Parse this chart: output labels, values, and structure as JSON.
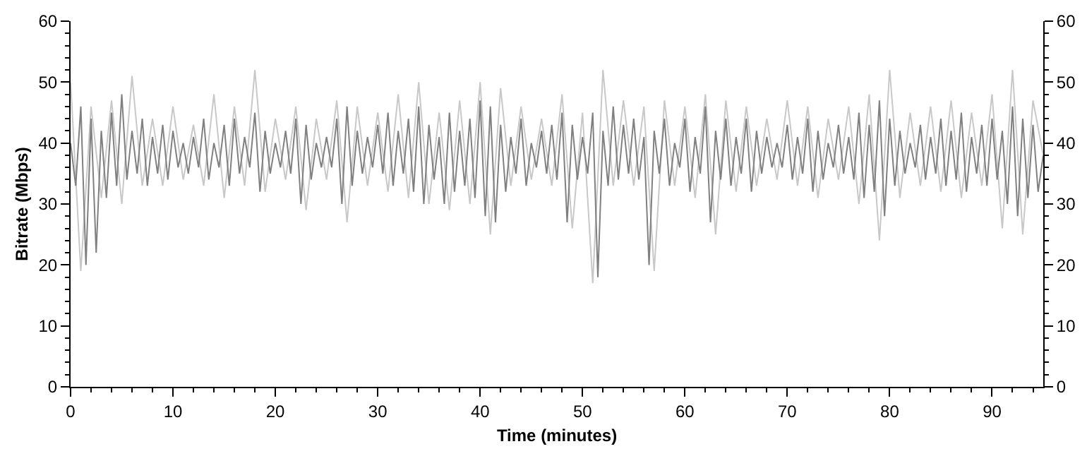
{
  "chart_data": {
    "type": "line",
    "xlabel": "Time (minutes)",
    "ylabel": "Bitrate (Mbps)",
    "xlim": [
      0,
      95
    ],
    "xticks": [
      0,
      10,
      20,
      30,
      40,
      50,
      60,
      70,
      80,
      90
    ],
    "ylim": [
      0,
      60
    ],
    "yticks": [
      0,
      10,
      20,
      30,
      40,
      50,
      60
    ],
    "y2lim": [
      0,
      60
    ],
    "y2ticks": [
      0,
      10,
      20,
      30,
      40,
      50,
      60
    ],
    "marker": "none",
    "line_style": "solid",
    "series": [
      {
        "color": "#c8c8c8",
        "x": [
          0,
          1,
          2,
          3,
          4,
          5,
          6,
          7,
          8,
          9,
          10,
          11,
          12,
          13,
          14,
          15,
          16,
          17,
          18,
          19,
          20,
          21,
          22,
          23,
          24,
          25,
          26,
          27,
          28,
          29,
          30,
          31,
          32,
          33,
          34,
          35,
          36,
          37,
          38,
          39,
          40,
          41,
          42,
          43,
          44,
          45,
          46,
          47,
          48,
          49,
          50,
          51,
          52,
          53,
          54,
          55,
          56,
          57,
          58,
          59,
          60,
          61,
          62,
          63,
          64,
          65,
          66,
          67,
          68,
          69,
          70,
          71,
          72,
          73,
          74,
          75,
          76,
          77,
          78,
          79,
          80,
          81,
          82,
          83,
          84,
          85,
          86,
          87,
          88,
          89,
          90,
          91,
          92,
          93,
          94,
          95
        ],
        "values": [
          50,
          19,
          46,
          31,
          47,
          30,
          51,
          33,
          44,
          33,
          46,
          34,
          43,
          33,
          48,
          31,
          46,
          33,
          52,
          32,
          44,
          34,
          46,
          29,
          44,
          34,
          47,
          27,
          46,
          33,
          45,
          32,
          48,
          31,
          50,
          30,
          45,
          29,
          47,
          30,
          50,
          25,
          49,
          33,
          46,
          34,
          44,
          33,
          48,
          26,
          45,
          17,
          52,
          33,
          47,
          33,
          46,
          19,
          47,
          33,
          46,
          31,
          48,
          25,
          47,
          32,
          46,
          33,
          44,
          34,
          47,
          33,
          46,
          31,
          44,
          34,
          46,
          30,
          48,
          24,
          52,
          31,
          45,
          33,
          46,
          32,
          47,
          31,
          45,
          33,
          48,
          26,
          52,
          25,
          47,
          38
        ]
      },
      {
        "color": "#808080",
        "x": [
          0,
          0.5,
          1,
          1.5,
          2,
          2.5,
          3,
          3.5,
          4,
          4.5,
          5,
          5.5,
          6,
          6.5,
          7,
          7.5,
          8,
          8.5,
          9,
          9.5,
          10,
          10.5,
          11,
          11.5,
          12,
          12.5,
          13,
          13.5,
          14,
          14.5,
          15,
          15.5,
          16,
          16.5,
          17,
          17.5,
          18,
          18.5,
          19,
          19.5,
          20,
          20.5,
          21,
          21.5,
          22,
          22.5,
          23,
          23.5,
          24,
          24.5,
          25,
          25.5,
          26,
          26.5,
          27,
          27.5,
          28,
          28.5,
          29,
          29.5,
          30,
          30.5,
          31,
          31.5,
          32,
          32.5,
          33,
          33.5,
          34,
          34.5,
          35,
          35.5,
          36,
          36.5,
          37,
          37.5,
          38,
          38.5,
          39,
          39.5,
          40,
          40.5,
          41,
          41.5,
          42,
          42.5,
          43,
          43.5,
          44,
          44.5,
          45,
          45.5,
          46,
          46.5,
          47,
          47.5,
          48,
          48.5,
          49,
          49.5,
          50,
          50.5,
          51,
          51.5,
          52,
          52.5,
          53,
          53.5,
          54,
          54.5,
          55,
          55.5,
          56,
          56.5,
          57,
          57.5,
          58,
          58.5,
          59,
          59.5,
          60,
          60.5,
          61,
          61.5,
          62,
          62.5,
          63,
          63.5,
          64,
          64.5,
          65,
          65.5,
          66,
          66.5,
          67,
          67.5,
          68,
          68.5,
          69,
          69.5,
          70,
          70.5,
          71,
          71.5,
          72,
          72.5,
          73,
          73.5,
          74,
          74.5,
          75,
          75.5,
          76,
          76.5,
          77,
          77.5,
          78,
          78.5,
          79,
          79.5,
          80,
          80.5,
          81,
          81.5,
          82,
          82.5,
          83,
          83.5,
          84,
          84.5,
          85,
          85.5,
          86,
          86.5,
          87,
          87.5,
          88,
          88.5,
          89,
          89.5,
          90,
          90.5,
          91,
          91.5,
          92,
          92.5,
          93,
          93.5,
          94,
          94.5,
          95
        ],
        "values": [
          40,
          33,
          46,
          20,
          44,
          22,
          42,
          31,
          45,
          33,
          48,
          34,
          42,
          35,
          44,
          33,
          41,
          35,
          43,
          34,
          42,
          36,
          40,
          35,
          41,
          36,
          44,
          34,
          40,
          36,
          43,
          33,
          44,
          35,
          41,
          36,
          45,
          32,
          42,
          35,
          40,
          36,
          42,
          35,
          44,
          30,
          43,
          34,
          40,
          36,
          41,
          36,
          44,
          30,
          46,
          33,
          42,
          35,
          41,
          36,
          43,
          35,
          45,
          33,
          42,
          35,
          44,
          32,
          46,
          30,
          43,
          34,
          41,
          30,
          45,
          32,
          42,
          33,
          44,
          31,
          47,
          28,
          46,
          27,
          43,
          32,
          41,
          35,
          44,
          33,
          40,
          36,
          42,
          35,
          43,
          34,
          45,
          27,
          43,
          34,
          41,
          35,
          45,
          18,
          42,
          33,
          46,
          34,
          43,
          35,
          44,
          34,
          41,
          20,
          42,
          35,
          44,
          33,
          40,
          36,
          44,
          32,
          41,
          35,
          46,
          27,
          42,
          34,
          44,
          33,
          41,
          35,
          44,
          32,
          42,
          35,
          41,
          36,
          40,
          36,
          43,
          34,
          41,
          35,
          44,
          32,
          42,
          34,
          40,
          36,
          43,
          35,
          41,
          34,
          45,
          31,
          43,
          32,
          47,
          28,
          44,
          33,
          42,
          35,
          40,
          36,
          43,
          34,
          41,
          35,
          44,
          33,
          42,
          34,
          45,
          32,
          41,
          35,
          43,
          33,
          44,
          34,
          42,
          30,
          46,
          28,
          44,
          31,
          43,
          32,
          38
        ]
      }
    ]
  }
}
